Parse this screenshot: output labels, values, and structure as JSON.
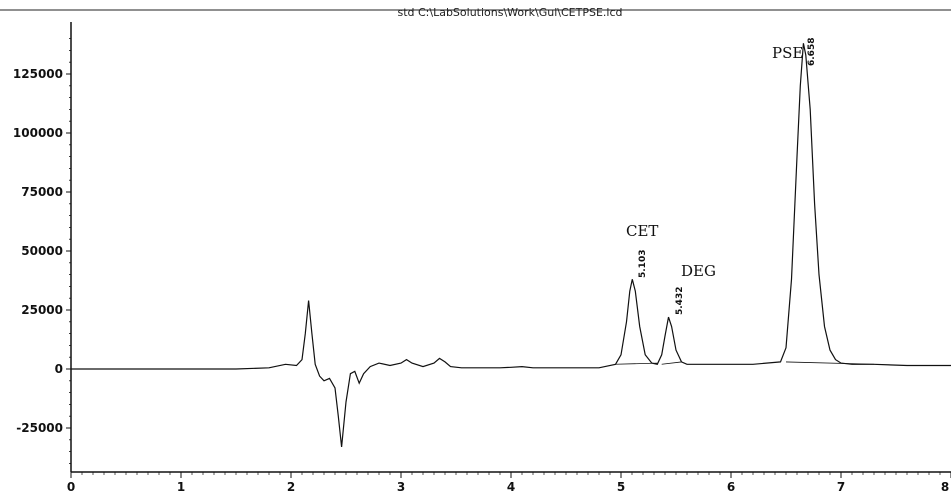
{
  "chart_data": {
    "type": "line",
    "title": "std C:\\LabSolutions\\Work\\Gul\\CETPSE.lcd",
    "xlabel": "",
    "ylabel": "",
    "xlim": [
      0,
      8
    ],
    "ylim": [
      -42000,
      145000
    ],
    "x_ticks": [
      0,
      1,
      2,
      3,
      4,
      5,
      6,
      7,
      8
    ],
    "y_ticks": [
      -25000,
      0,
      25000,
      50000,
      75000,
      100000,
      125000
    ],
    "grid": false,
    "series": [
      {
        "x": [
          0.0,
          0.5,
          1.0,
          1.5,
          1.8,
          1.95,
          2.05,
          2.1,
          2.13,
          2.16,
          2.19,
          2.22,
          2.26,
          2.3,
          2.35,
          2.4,
          2.43,
          2.46,
          2.5,
          2.54,
          2.58,
          2.62,
          2.66,
          2.72,
          2.8,
          2.9,
          3.0,
          3.05,
          3.1,
          3.2,
          3.3,
          3.35,
          3.4,
          3.45,
          3.55,
          3.7,
          3.9,
          4.0,
          4.1,
          4.2,
          4.5,
          4.8,
          4.95,
          5.0,
          5.05,
          5.08,
          5.103,
          5.13,
          5.17,
          5.22,
          5.28,
          5.33,
          5.37,
          5.4,
          5.432,
          5.46,
          5.5,
          5.55,
          5.6,
          5.7,
          5.9,
          6.2,
          6.45,
          6.5,
          6.55,
          6.6,
          6.63,
          6.658,
          6.68,
          6.72,
          6.76,
          6.8,
          6.85,
          6.9,
          6.95,
          7.0,
          7.1,
          7.3,
          7.6,
          8.0
        ],
        "y": [
          0,
          0,
          0,
          0,
          500,
          2000,
          1500,
          4000,
          15000,
          29000,
          15000,
          2000,
          -3000,
          -5000,
          -4000,
          -8000,
          -20000,
          -33000,
          -14000,
          -2000,
          -1000,
          -6000,
          -2000,
          1000,
          2500,
          1500,
          2500,
          4000,
          2500,
          1000,
          2500,
          4500,
          3000,
          1000,
          500,
          500,
          500,
          700,
          1000,
          500,
          500,
          500,
          2000,
          6000,
          20000,
          33000,
          38000,
          33000,
          18000,
          6000,
          2500,
          2000,
          6000,
          14000,
          22000,
          18000,
          8000,
          3000,
          2000,
          2000,
          2000,
          2000,
          3000,
          9000,
          38000,
          90000,
          120000,
          138000,
          133000,
          110000,
          70000,
          40000,
          18000,
          8000,
          4000,
          2500,
          2000,
          2000,
          1500,
          1500
        ]
      }
    ],
    "annotations": [
      {
        "text": "CET",
        "x": 5.103
      },
      {
        "text": "5.103",
        "x": 5.103
      },
      {
        "text": "DEG",
        "x": 5.432
      },
      {
        "text": "5.432",
        "x": 5.432
      },
      {
        "text": "PSE",
        "x": 6.658
      },
      {
        "text": "6.658",
        "x": 6.658
      }
    ]
  }
}
